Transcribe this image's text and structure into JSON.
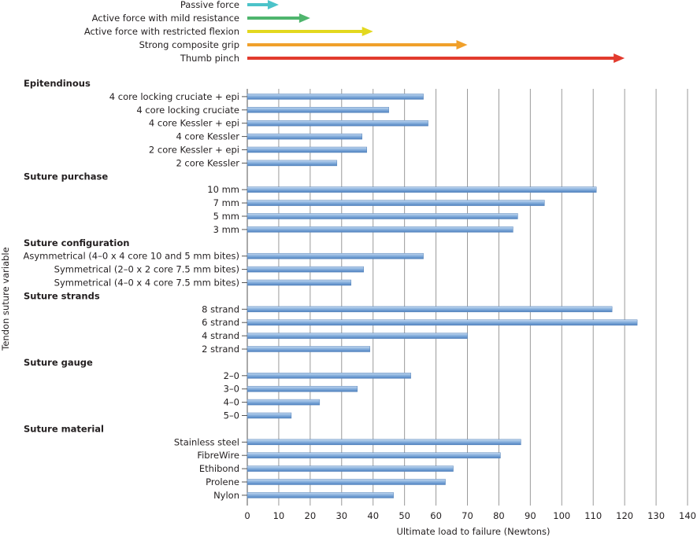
{
  "chart_data": {
    "type": "bar",
    "orientation": "horizontal",
    "xlabel": "Ultimate load to failure (Newtons)",
    "ylabel": "Tendon suture variable",
    "xlim": [
      0,
      140
    ],
    "xticks": [
      0,
      10,
      20,
      30,
      40,
      50,
      60,
      70,
      80,
      90,
      100,
      110,
      120,
      130,
      140
    ],
    "grid": "vertical",
    "bar_color": "#6e9fd4",
    "reference_arrows": [
      {
        "label": "Passive force",
        "value": 10,
        "color": "#4cc3c9"
      },
      {
        "label": "Active force with mild resistance",
        "value": 20,
        "color": "#4fb56d"
      },
      {
        "label": "Active force with restricted flexion",
        "value": 40,
        "color": "#e3d81f"
      },
      {
        "label": "Strong composite grip",
        "value": 70,
        "color": "#f0a02b"
      },
      {
        "label": "Thumb pinch",
        "value": 120,
        "color": "#e23b2e"
      }
    ],
    "groups": [
      {
        "name": "Epitendinous",
        "items": [
          {
            "label": "4 core locking cruciate + epi",
            "value": 56
          },
          {
            "label": "4 core locking cruciate",
            "value": 45
          },
          {
            "label": "4 core Kessler + epi",
            "value": 57.5
          },
          {
            "label": "4 core Kessler",
            "value": 36.5
          },
          {
            "label": "2 core Kessler + epi",
            "value": 38
          },
          {
            "label": "2 core Kessler",
            "value": 28.5
          }
        ]
      },
      {
        "name": "Suture purchase",
        "items": [
          {
            "label": "10 mm",
            "value": 111
          },
          {
            "label": "7 mm",
            "value": 94.5
          },
          {
            "label": "5 mm",
            "value": 86
          },
          {
            "label": "3 mm",
            "value": 84.5
          }
        ]
      },
      {
        "name": "Suture configuration",
        "items": [
          {
            "label": "Asymmetrical (4–0 x 4 core 10 and 5 mm bites)",
            "value": 56
          },
          {
            "label": "Symmetrical (2–0 x 2 core 7.5 mm bites)",
            "value": 37
          },
          {
            "label": "Symmetrical (4–0 x 4 core 7.5 mm bites)",
            "value": 33
          }
        ]
      },
      {
        "name": "Suture strands",
        "items": [
          {
            "label": "8 strand",
            "value": 116
          },
          {
            "label": "6 strand",
            "value": 124
          },
          {
            "label": "4 strand",
            "value": 70
          },
          {
            "label": "2 strand",
            "value": 39
          }
        ]
      },
      {
        "name": "Suture gauge",
        "items": [
          {
            "label": "2–0",
            "value": 52
          },
          {
            "label": "3–0",
            "value": 35
          },
          {
            "label": "4–0",
            "value": 23
          },
          {
            "label": "5–0",
            "value": 14
          }
        ]
      },
      {
        "name": "Suture material",
        "items": [
          {
            "label": "Stainless steel",
            "value": 87
          },
          {
            "label": "FibreWire",
            "value": 80.5
          },
          {
            "label": "Ethibond",
            "value": 65.5
          },
          {
            "label": "Prolene",
            "value": 63
          },
          {
            "label": "Nylon",
            "value": 46.5
          }
        ]
      }
    ]
  }
}
